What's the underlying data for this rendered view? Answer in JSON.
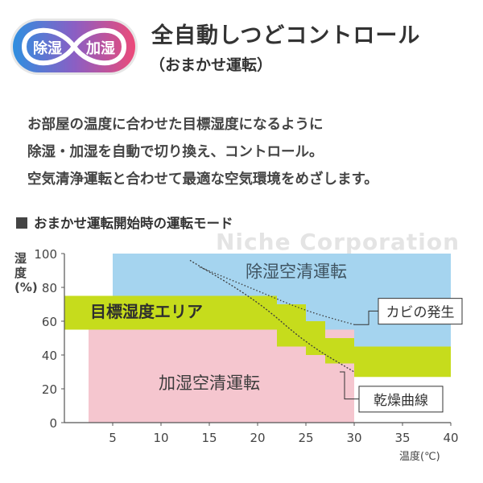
{
  "badge": {
    "left_label": "除湿",
    "right_label": "加湿"
  },
  "header": {
    "title": "全自動しつどコントロール",
    "subtitle": "（おまかせ運転）"
  },
  "description": [
    "お部屋の温度に合わせた目標湿度になるように",
    "除湿・加湿を自動で切り換え、コントロール。",
    "空気清浄運転と合わせて最適な空気環境をめざします。"
  ],
  "section_heading": "おまかせ運転開始時の運転モード",
  "watermark": "Niche Corporation",
  "chart_data": {
    "type": "area",
    "ylabel": "湿度(%)",
    "xlabel": "温度(℃)",
    "xlim": [
      0,
      40
    ],
    "ylim": [
      0,
      100
    ],
    "xticks": [
      5,
      10,
      15,
      20,
      25,
      30,
      35,
      40
    ],
    "yticks": [
      0,
      20,
      40,
      60,
      80,
      100
    ],
    "regions": [
      {
        "name": "除湿空清運転",
        "color": "#a5d4ef",
        "label": "除湿空清運転"
      },
      {
        "name": "目標湿度エリア",
        "color": "#c6dc1c",
        "label": "目標湿度エリア"
      },
      {
        "name": "加湿空清運転",
        "color": "#f5c6cf",
        "label": "加湿空清運転"
      }
    ],
    "target_band": {
      "x": [
        0,
        20,
        22,
        25,
        27,
        30,
        40
      ],
      "upper": [
        75,
        75,
        70,
        60,
        50,
        45,
        45
      ],
      "lower": [
        55,
        55,
        45,
        40,
        35,
        27,
        27
      ]
    },
    "dehumid_region": {
      "x_from": 5,
      "x_to": 40,
      "y_to": 100
    },
    "humid_region": {
      "x_from": 2.5,
      "x_to": 30,
      "y_from": 0
    },
    "curves": [
      {
        "name": "カビの発生",
        "label": "カビの発生",
        "points": [
          [
            14,
            92
          ],
          [
            20,
            78
          ],
          [
            25,
            66
          ],
          [
            30,
            58
          ]
        ]
      },
      {
        "name": "乾燥曲線",
        "label": "乾燥曲線",
        "points": [
          [
            13,
            96
          ],
          [
            20,
            72
          ],
          [
            25,
            47
          ],
          [
            30,
            30
          ]
        ]
      }
    ],
    "colors": {
      "axis": "#555555",
      "text": "#444444",
      "callout": "#333333"
    }
  }
}
